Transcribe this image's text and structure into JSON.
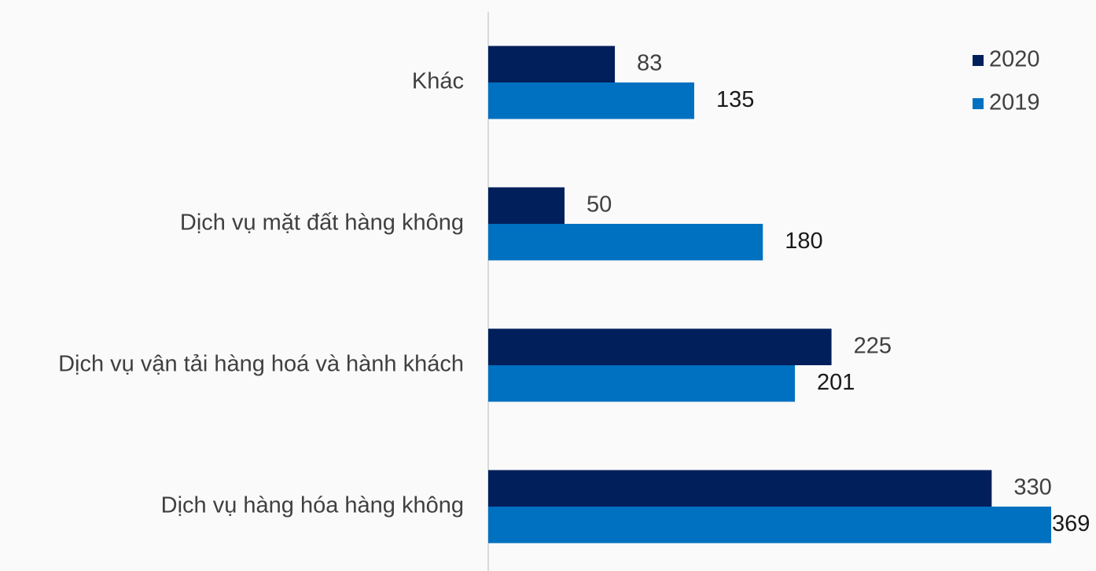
{
  "chart_data": {
    "type": "barh",
    "categories": [
      "Khác",
      "Dịch vụ mặt đất hàng không",
      "Dịch vụ vận tải hàng hoá và hành khách",
      "Dịch vụ hàng hóa hàng không"
    ],
    "series": [
      {
        "name": "2020",
        "color": "#001f5b",
        "values": [
          83,
          50,
          225,
          330
        ]
      },
      {
        "name": "2019",
        "color": "#0070c0",
        "values": [
          135,
          180,
          201,
          369
        ]
      }
    ],
    "legend": "top-right"
  }
}
